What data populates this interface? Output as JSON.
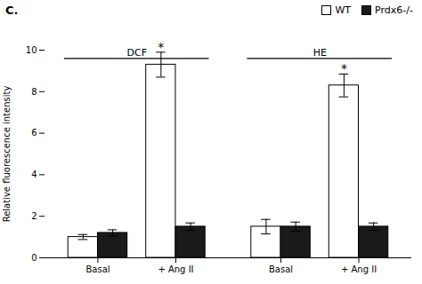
{
  "chart_data": {
    "type": "bar",
    "title": "C.",
    "ylabel": "Relative fluorescence intensity",
    "categories": [
      "Basal",
      "+ Ang II",
      "Basal",
      "+ Ang II"
    ],
    "series": [
      {
        "name": "WT",
        "color": "#ffffff",
        "values": [
          1.0,
          9.3,
          1.5,
          8.3
        ],
        "errors": [
          0.12,
          0.6,
          0.35,
          0.55
        ]
      },
      {
        "name": "Prdx6-/-",
        "color": "#1a1a1a",
        "values": [
          1.2,
          1.5,
          1.5,
          1.5
        ],
        "errors": [
          0.15,
          0.18,
          0.22,
          0.18
        ]
      }
    ],
    "groups": [
      {
        "label": "DCF",
        "categories": [
          0,
          1
        ],
        "y": 9.6
      },
      {
        "label": "HE",
        "categories": [
          2,
          3
        ],
        "y": 9.6
      }
    ],
    "annotations": [
      {
        "text": "*",
        "series": "WT",
        "category": 1
      },
      {
        "text": "*",
        "series": "WT",
        "category": 3
      }
    ],
    "ylim": [
      0,
      10
    ],
    "yticks": [
      0,
      2,
      4,
      6,
      8,
      10
    ],
    "legend": "upper right"
  }
}
